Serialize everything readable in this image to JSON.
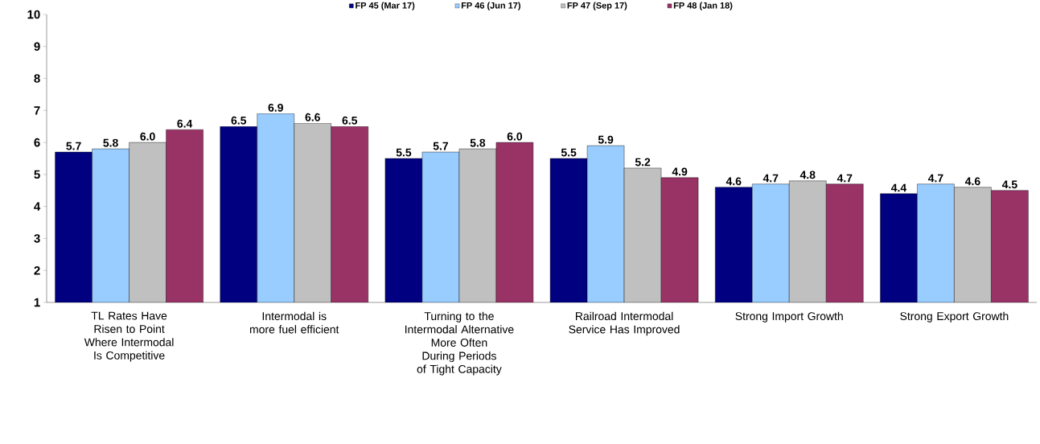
{
  "chart_data": {
    "type": "bar",
    "categories": [
      "TL Rates Have Risen to Point Where Intermodal Is Competitive",
      "Intermodal is more fuel efficient",
      "Turning to the Intermodal Alternative More Often During Periods of Tight Capacity",
      "Railroad Intermodal Service Has Improved",
      "Strong Import Growth",
      "Strong Export Growth"
    ],
    "series": [
      {
        "name": "FP 45 (Mar 17)",
        "color": "#000080",
        "values": [
          5.7,
          6.5,
          5.5,
          5.5,
          4.6,
          4.4
        ],
        "value_labels": [
          "5.7",
          "6.5",
          "5.5",
          "5.5",
          "4.6",
          "4.4"
        ]
      },
      {
        "name": "FP 46 (Jun 17)",
        "color": "#99ccff",
        "values": [
          5.8,
          6.9,
          5.7,
          5.9,
          4.7,
          4.7
        ],
        "value_labels": [
          "5.8",
          "6.9",
          "5.7",
          "5.9",
          "4.7",
          "4.7"
        ]
      },
      {
        "name": "FP 47 (Sep 17)",
        "color": "#c0c0c0",
        "values": [
          6.0,
          6.6,
          5.8,
          5.2,
          4.8,
          4.6
        ],
        "value_labels": [
          "6.0",
          "6.6",
          "5.8",
          "5.2",
          "4.8",
          "4.6"
        ]
      },
      {
        "name": "FP 48 (Jan 18)",
        "color": "#993366",
        "values": [
          6.4,
          6.5,
          6.0,
          4.9,
          4.7,
          4.5
        ],
        "value_labels": [
          "6.4",
          "6.5",
          "6.0",
          "4.9",
          "4.7",
          "4.5"
        ]
      }
    ],
    "ylim": [
      1,
      10
    ],
    "yticks": [
      1,
      2,
      3,
      4,
      5,
      6,
      7,
      8,
      9,
      10
    ],
    "grid": false,
    "legend": "top"
  }
}
